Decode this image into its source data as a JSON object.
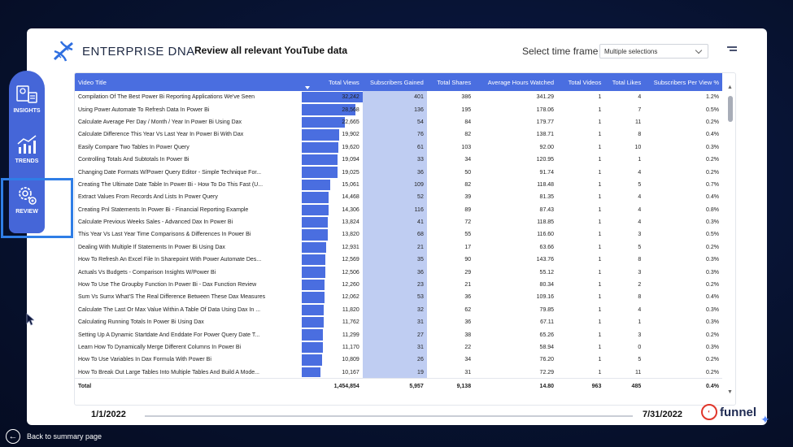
{
  "header": {
    "logo_text": "ENTERPRISE DNA",
    "title": "Review all relevant YouTube data",
    "timeframe_label": "Select time frame",
    "timeframe_value": "Multiple selections"
  },
  "nav": {
    "insights": "INSIGHTS",
    "trends": "TRENDS",
    "review": "REVIEW"
  },
  "table": {
    "columns": [
      "Video Title",
      "Total Views",
      "Subscribers Gained",
      "Total Shares",
      "Average Hours Watched",
      "Total Videos",
      "Total Likes",
      "Subscribers Per View %"
    ],
    "max_views": 32242,
    "max_subs": 401,
    "rows": [
      [
        "Compilation Of The Best Power Bi Reporting Applications We've Seen",
        "32,242",
        "401",
        "386",
        "341.29",
        "1",
        "4",
        "1.2%"
      ],
      [
        "Using Power Automate To Refresh Data In Power Bi",
        "28,568",
        "136",
        "195",
        "178.06",
        "1",
        "7",
        "0.5%"
      ],
      [
        "Calculate Average Per Day / Month / Year In Power Bi Using Dax",
        "22,665",
        "54",
        "84",
        "179.77",
        "1",
        "11",
        "0.2%"
      ],
      [
        "Calculate Difference This Year Vs Last Year In Power Bi With Dax",
        "19,902",
        "76",
        "82",
        "138.71",
        "1",
        "8",
        "0.4%"
      ],
      [
        "Easily Compare Two Tables In Power Query",
        "19,620",
        "61",
        "103",
        "92.00",
        "1",
        "10",
        "0.3%"
      ],
      [
        "Controlling Totals And Subtotals In Power Bi",
        "19,094",
        "33",
        "34",
        "120.95",
        "1",
        "1",
        "0.2%"
      ],
      [
        "Changing Date Formats W/Power Query Editor - Simple Technique For...",
        "19,025",
        "36",
        "50",
        "91.74",
        "1",
        "4",
        "0.2%"
      ],
      [
        "Creating The Ultimate Date Table In Power Bi - How To Do This Fast (U...",
        "15,061",
        "109",
        "82",
        "118.48",
        "1",
        "5",
        "0.7%"
      ],
      [
        "Extract Values From Records And Lists In Power Query",
        "14,468",
        "52",
        "39",
        "81.35",
        "1",
        "4",
        "0.4%"
      ],
      [
        "Creating Pnl Statements In Power Bi - Financial Reporting Example",
        "14,306",
        "116",
        "89",
        "87.43",
        "1",
        "4",
        "0.8%"
      ],
      [
        "Calculate Previous Weeks Sales - Advanced Dax In Power Bi",
        "13,824",
        "41",
        "72",
        "118.85",
        "1",
        "4",
        "0.3%"
      ],
      [
        "This Year Vs Last Year Time Comparisons & Differences In Power Bi",
        "13,820",
        "68",
        "55",
        "116.60",
        "1",
        "3",
        "0.5%"
      ],
      [
        "Dealing With Multiple If Statements In Power Bi Using Dax",
        "12,931",
        "21",
        "17",
        "63.66",
        "1",
        "5",
        "0.2%"
      ],
      [
        "How To Refresh An Excel File In Sharepoint With Power Automate Des...",
        "12,569",
        "35",
        "90",
        "143.76",
        "1",
        "8",
        "0.3%"
      ],
      [
        "Actuals Vs Budgets - Comparison Insights W/Power Bi",
        "12,506",
        "36",
        "29",
        "55.12",
        "1",
        "3",
        "0.3%"
      ],
      [
        "How To Use The Groupby Function In Power Bi - Dax Function Review",
        "12,260",
        "23",
        "21",
        "80.34",
        "1",
        "2",
        "0.2%"
      ],
      [
        "Sum Vs Sumx What'S The Real Difference Between These Dax Measures",
        "12,062",
        "53",
        "36",
        "109.16",
        "1",
        "8",
        "0.4%"
      ],
      [
        "Calculate The Last Or Max Value Within A Table Of Data Using Dax In ...",
        "11,820",
        "32",
        "62",
        "79.85",
        "1",
        "4",
        "0.3%"
      ],
      [
        "Calculating Running Totals In Power Bi Using Dax",
        "11,762",
        "31",
        "36",
        "67.11",
        "1",
        "1",
        "0.3%"
      ],
      [
        "Setting Up A Dynamic Startdate And Enddate For Power Query Date T...",
        "11,299",
        "27",
        "38",
        "65.26",
        "1",
        "3",
        "0.2%"
      ],
      [
        "Learn How To Dynamically Merge Different Columns In Power Bi",
        "11,170",
        "31",
        "22",
        "58.94",
        "1",
        "0",
        "0.3%"
      ],
      [
        "How To Use Variables In Dax Formula With Power Bi",
        "10,809",
        "26",
        "34",
        "76.20",
        "1",
        "5",
        "0.2%"
      ],
      [
        "How To Break Out Large Tables Into Multiple Tables And Build A Mode...",
        "10,167",
        "19",
        "31",
        "72.29",
        "1",
        "11",
        "0.2%"
      ]
    ],
    "total": [
      "Total",
      "1,454,854",
      "5,957",
      "9,138",
      "14.80",
      "963",
      "485",
      "0.4%"
    ]
  },
  "footer": {
    "start_date": "1/1/2022",
    "end_date": "7/31/2022",
    "brand": "funnel",
    "back_label": "Back to summary page"
  }
}
